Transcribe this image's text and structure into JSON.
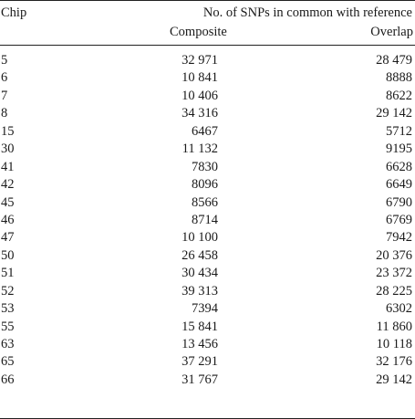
{
  "table": {
    "header": {
      "chip": "Chip",
      "group": "No. of SNPs in common with reference",
      "composite": "Composite",
      "overlap": "Overlap"
    },
    "rows": [
      {
        "chip": "5",
        "composite": "32 971",
        "overlap": "28 479"
      },
      {
        "chip": "6",
        "composite": "10 841",
        "overlap": "8888"
      },
      {
        "chip": "7",
        "composite": "10 406",
        "overlap": "8622"
      },
      {
        "chip": "8",
        "composite": "34 316",
        "overlap": "29 142"
      },
      {
        "chip": "15",
        "composite": "6467",
        "overlap": "5712"
      },
      {
        "chip": "30",
        "composite": "11 132",
        "overlap": "9195"
      },
      {
        "chip": "41",
        "composite": "7830",
        "overlap": "6628"
      },
      {
        "chip": "42",
        "composite": "8096",
        "overlap": "6649"
      },
      {
        "chip": "45",
        "composite": "8566",
        "overlap": "6790"
      },
      {
        "chip": "46",
        "composite": "8714",
        "overlap": "6769"
      },
      {
        "chip": "47",
        "composite": "10 100",
        "overlap": "7942"
      },
      {
        "chip": "50",
        "composite": "26 458",
        "overlap": "20 376"
      },
      {
        "chip": "51",
        "composite": "30 434",
        "overlap": "23 372"
      },
      {
        "chip": "52",
        "composite": "39 313",
        "overlap": "28 225"
      },
      {
        "chip": "53",
        "composite": "7394",
        "overlap": "6302"
      },
      {
        "chip": "55",
        "composite": "15 841",
        "overlap": "11 860"
      },
      {
        "chip": "63",
        "composite": "13 456",
        "overlap": "10 118"
      },
      {
        "chip": "65",
        "composite": "37 291",
        "overlap": "32 176"
      },
      {
        "chip": "66",
        "composite": "31 767",
        "overlap": "29 142"
      }
    ]
  }
}
